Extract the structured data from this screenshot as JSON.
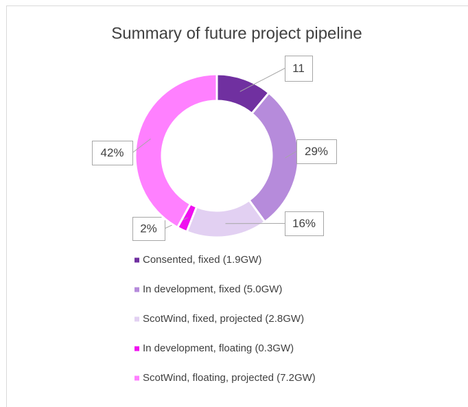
{
  "chart_data": {
    "type": "doughnut",
    "title": "Summary of future project pipeline",
    "categories": [
      "Consented, fixed (1.9GW)",
      "In development, fixed (5.0GW)",
      "ScotWind, fixed, projected (2.8GW)",
      "In development, floating (0.3GW)",
      "ScotWind, floating, projected (7.2GW)"
    ],
    "values": [
      11,
      29,
      16,
      2,
      42
    ],
    "value_labels": [
      "11",
      "29%",
      "16%",
      "2%",
      "42%"
    ],
    "colors": [
      "#7030a0",
      "#b68bdb",
      "#e2d0f2",
      "#f010f0",
      "#ff80ff"
    ],
    "legend": "bottom"
  }
}
